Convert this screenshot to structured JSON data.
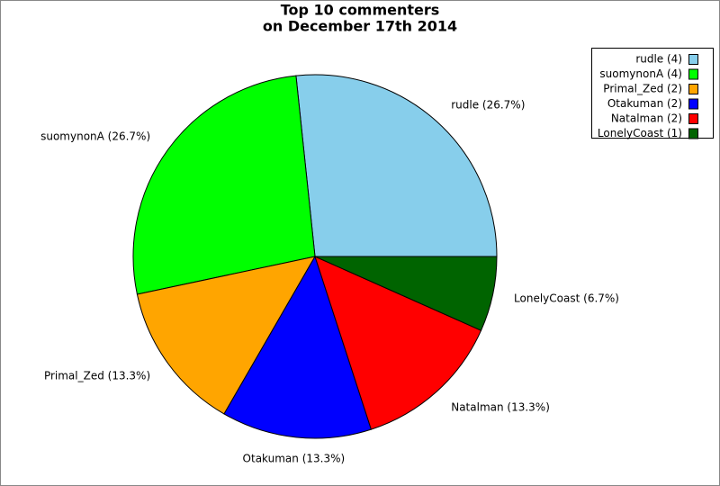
{
  "chart_data": {
    "type": "pie",
    "title": "Top 10 commenters",
    "subtitle": "on December 17th 2014",
    "values": [
      4,
      4,
      2,
      2,
      2,
      1
    ],
    "value_labels": [
      "rudle (4)",
      "suomynonA (4)",
      "Primal_Zed (2)",
      "Otakuman (2)",
      "Natalman (2)",
      "LonelyCoast (1)"
    ],
    "slice_labels": [
      "rudle (26.7%)",
      "suomynonA (26.7%)",
      "Primal_Zed (13.3%)",
      "Otakuman (13.3%)",
      "Natalman (13.3%)",
      "LonelyCoast (6.7%)"
    ],
    "colors": [
      "#87ceeb",
      "#00ff00",
      "#ffa500",
      "#0000ff",
      "#ff0000",
      "#006400"
    ],
    "legend": "upper right"
  }
}
